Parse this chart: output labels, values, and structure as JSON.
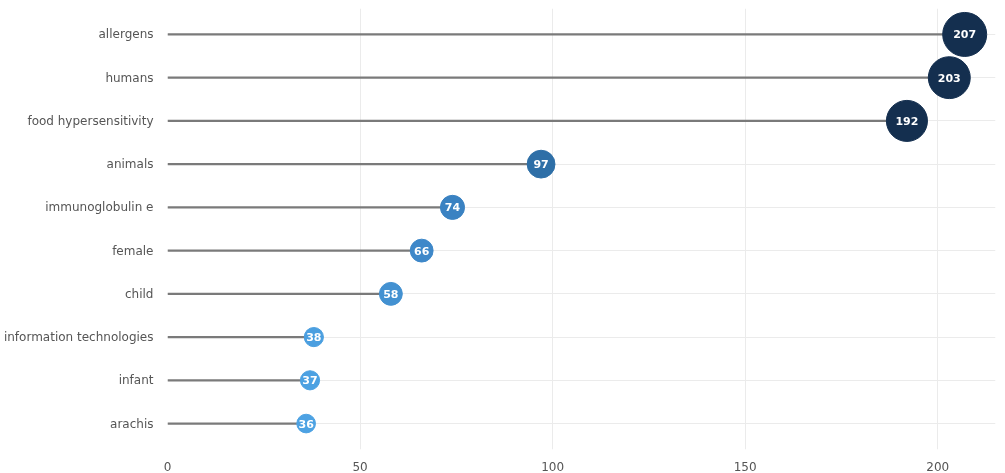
{
  "chart_data": {
    "type": "lollipop",
    "orientation": "horizontal",
    "categories": [
      "allergens",
      "humans",
      "food hypersensitivity",
      "animals",
      "immunoglobulin e",
      "female",
      "child",
      "information technologies",
      "infant",
      "arachis"
    ],
    "values": [
      207,
      203,
      192,
      97,
      74,
      66,
      58,
      38,
      37,
      36
    ],
    "sizes": [
      1,
      0.91,
      0.87,
      0.4,
      0.3,
      0.27,
      0.27,
      0.19,
      0.19,
      0.18
    ],
    "colors": [
      "#142f4f",
      "#142f4f",
      "#142f4f",
      "#2e6fa7",
      "#3a82c2",
      "#3e88c9",
      "#4391d1",
      "#4b9fe0",
      "#4ca1e2",
      "#4da2e3"
    ],
    "data_labels": true,
    "marker": "circle",
    "grid": true,
    "xlim": [
      0,
      215
    ],
    "xticks": [
      0,
      50,
      100,
      150,
      200
    ]
  }
}
